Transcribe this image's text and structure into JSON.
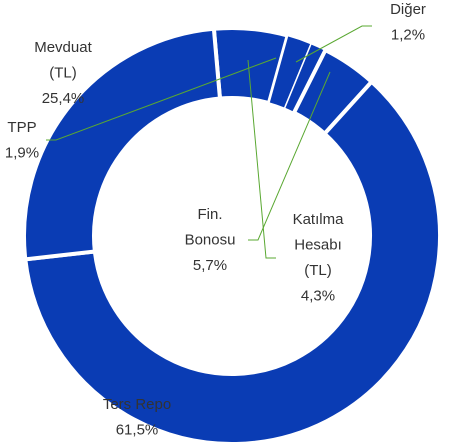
{
  "chart_data": {
    "type": "donut",
    "categories": [
      "Fin.\nBonosu",
      "TPP",
      "Diğer",
      "Katılma\nHesabı\n(TL)",
      "Ters Repo",
      "Mevduat\n(TL)"
    ],
    "values": [
      5.7,
      1.9,
      1.2,
      4.3,
      61.5,
      25.4
    ],
    "value_labels": [
      "5,7%",
      "1,9%",
      "1,2%",
      "4,3%",
      "61,5%",
      "25,4%"
    ],
    "color": "#0a3cb4"
  }
}
